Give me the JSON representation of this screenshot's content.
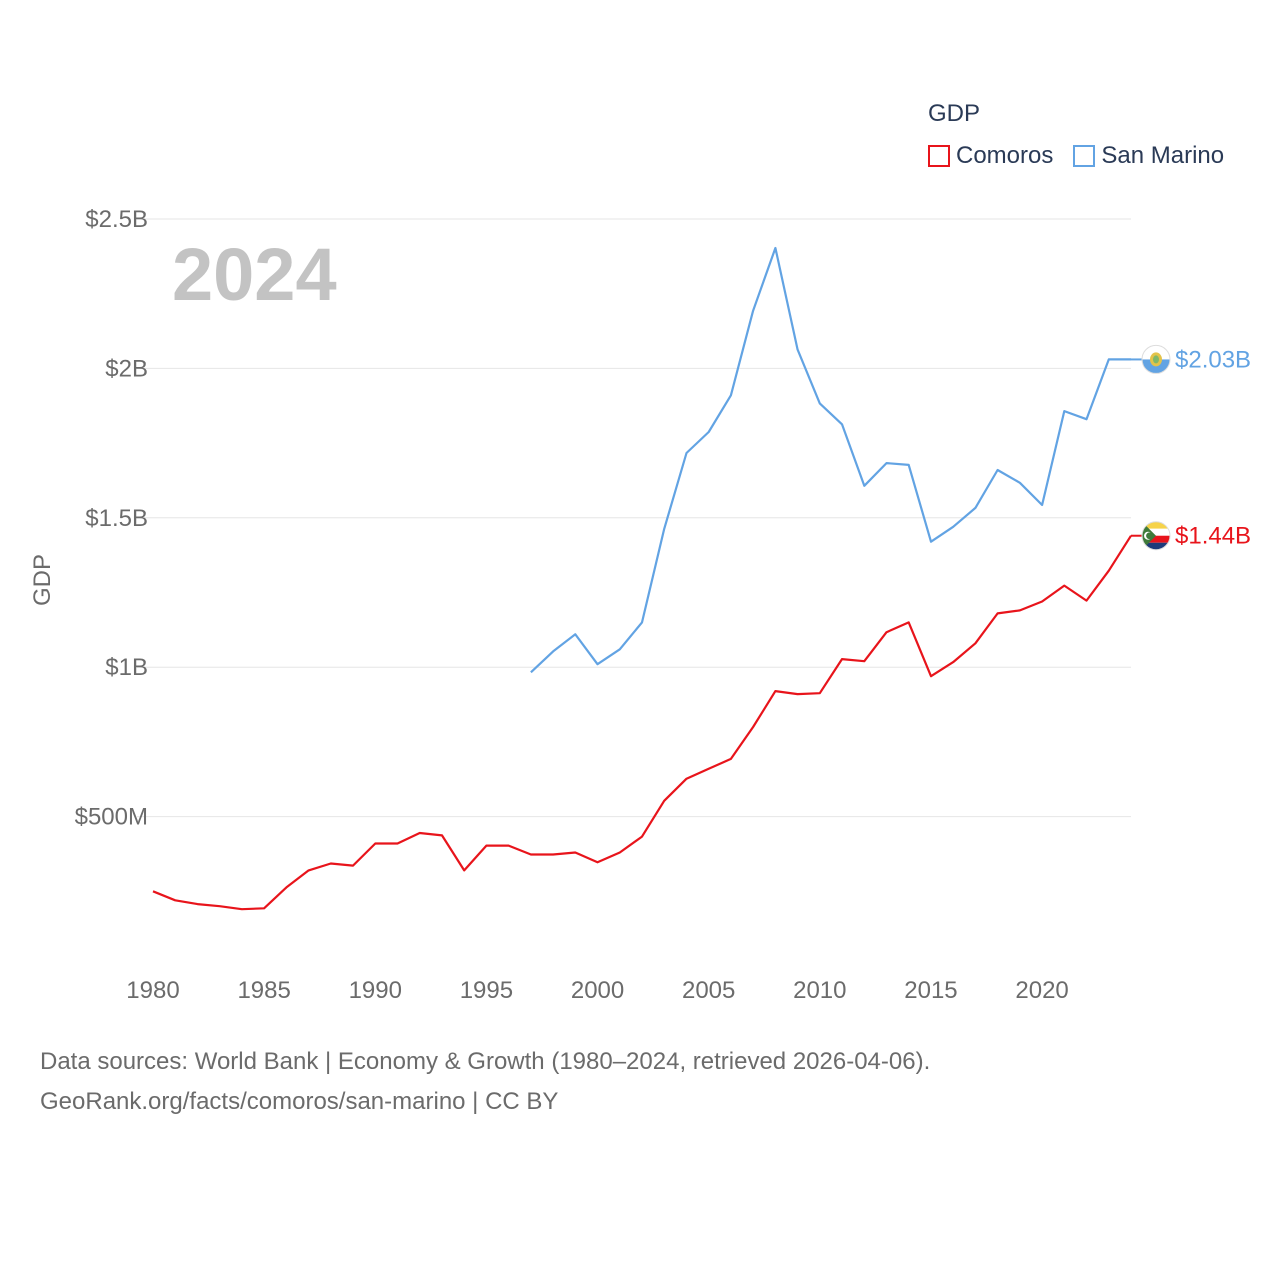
{
  "legend": {
    "title": "GDP",
    "items": [
      {
        "name": "Comoros",
        "color": "#e8141b"
      },
      {
        "name": "San Marino",
        "color": "#62a3e3"
      }
    ]
  },
  "year_label": "2024",
  "footer": {
    "line1": "Data sources: World Bank | Economy & Growth (1980–2024, retrieved 2026-04-06).",
    "line2": "GeoRank.org/facts/comoros/san-marino | CC BY"
  },
  "chart_data": {
    "type": "line",
    "title": "GDP",
    "xlabel": "",
    "ylabel": "GDP",
    "xlim": [
      1980,
      2024
    ],
    "ylim": [
      0,
      2500000000
    ],
    "yticks": [
      {
        "value": 500000000,
        "label": "$500M"
      },
      {
        "value": 1000000000,
        "label": "$1B"
      },
      {
        "value": 1500000000,
        "label": "$1.5B"
      },
      {
        "value": 2000000000,
        "label": "$2B"
      },
      {
        "value": 2500000000,
        "label": "$2.5B"
      }
    ],
    "xticks": [
      1980,
      1985,
      1990,
      1995,
      2000,
      2005,
      2010,
      2015,
      2020
    ],
    "series": [
      {
        "name": "Comoros",
        "color": "#e8141b",
        "end_label": "$1.44B",
        "x": [
          1980,
          1981,
          1982,
          1983,
          1984,
          1985,
          1986,
          1987,
          1988,
          1989,
          1990,
          1991,
          1992,
          1993,
          1994,
          1995,
          1996,
          1997,
          1998,
          1999,
          2000,
          2001,
          2002,
          2003,
          2004,
          2005,
          2006,
          2007,
          2008,
          2009,
          2010,
          2011,
          2012,
          2013,
          2014,
          2015,
          2016,
          2017,
          2018,
          2019,
          2020,
          2021,
          2022,
          2023,
          2024
        ],
        "values": [
          250000000,
          220000000,
          207000000,
          200000000,
          190000000,
          193000000,
          263000000,
          320000000,
          343000000,
          336000000,
          410000000,
          410000000,
          445000000,
          437000000,
          320000000,
          403000000,
          403000000,
          373000000,
          373000000,
          380000000,
          347000000,
          380000000,
          433000000,
          553000000,
          627000000,
          660000000,
          693000000,
          800000000,
          920000000,
          910000000,
          913000000,
          1027000000,
          1020000000,
          1117000000,
          1150000000,
          970000000,
          1017000000,
          1080000000,
          1180000000,
          1190000000,
          1220000000,
          1273000000,
          1223000000,
          1323000000,
          1440000000
        ]
      },
      {
        "name": "San Marino",
        "color": "#62a3e3",
        "end_label": "$2.03B",
        "x": [
          1997,
          1998,
          1999,
          2000,
          2001,
          2002,
          2003,
          2004,
          2005,
          2006,
          2007,
          2008,
          2009,
          2010,
          2011,
          2012,
          2013,
          2014,
          2015,
          2016,
          2017,
          2018,
          2019,
          2020,
          2021,
          2022,
          2023,
          2024
        ],
        "values": [
          983000000,
          1053000000,
          1110000000,
          1010000000,
          1060000000,
          1150000000,
          1463000000,
          1717000000,
          1787000000,
          1910000000,
          2193000000,
          2403000000,
          2063000000,
          1883000000,
          1813000000,
          1607000000,
          1683000000,
          1677000000,
          1420000000,
          1470000000,
          1533000000,
          1660000000,
          1617000000,
          1543000000,
          1857000000,
          1830000000,
          2030000000,
          2030000000
        ]
      }
    ]
  }
}
